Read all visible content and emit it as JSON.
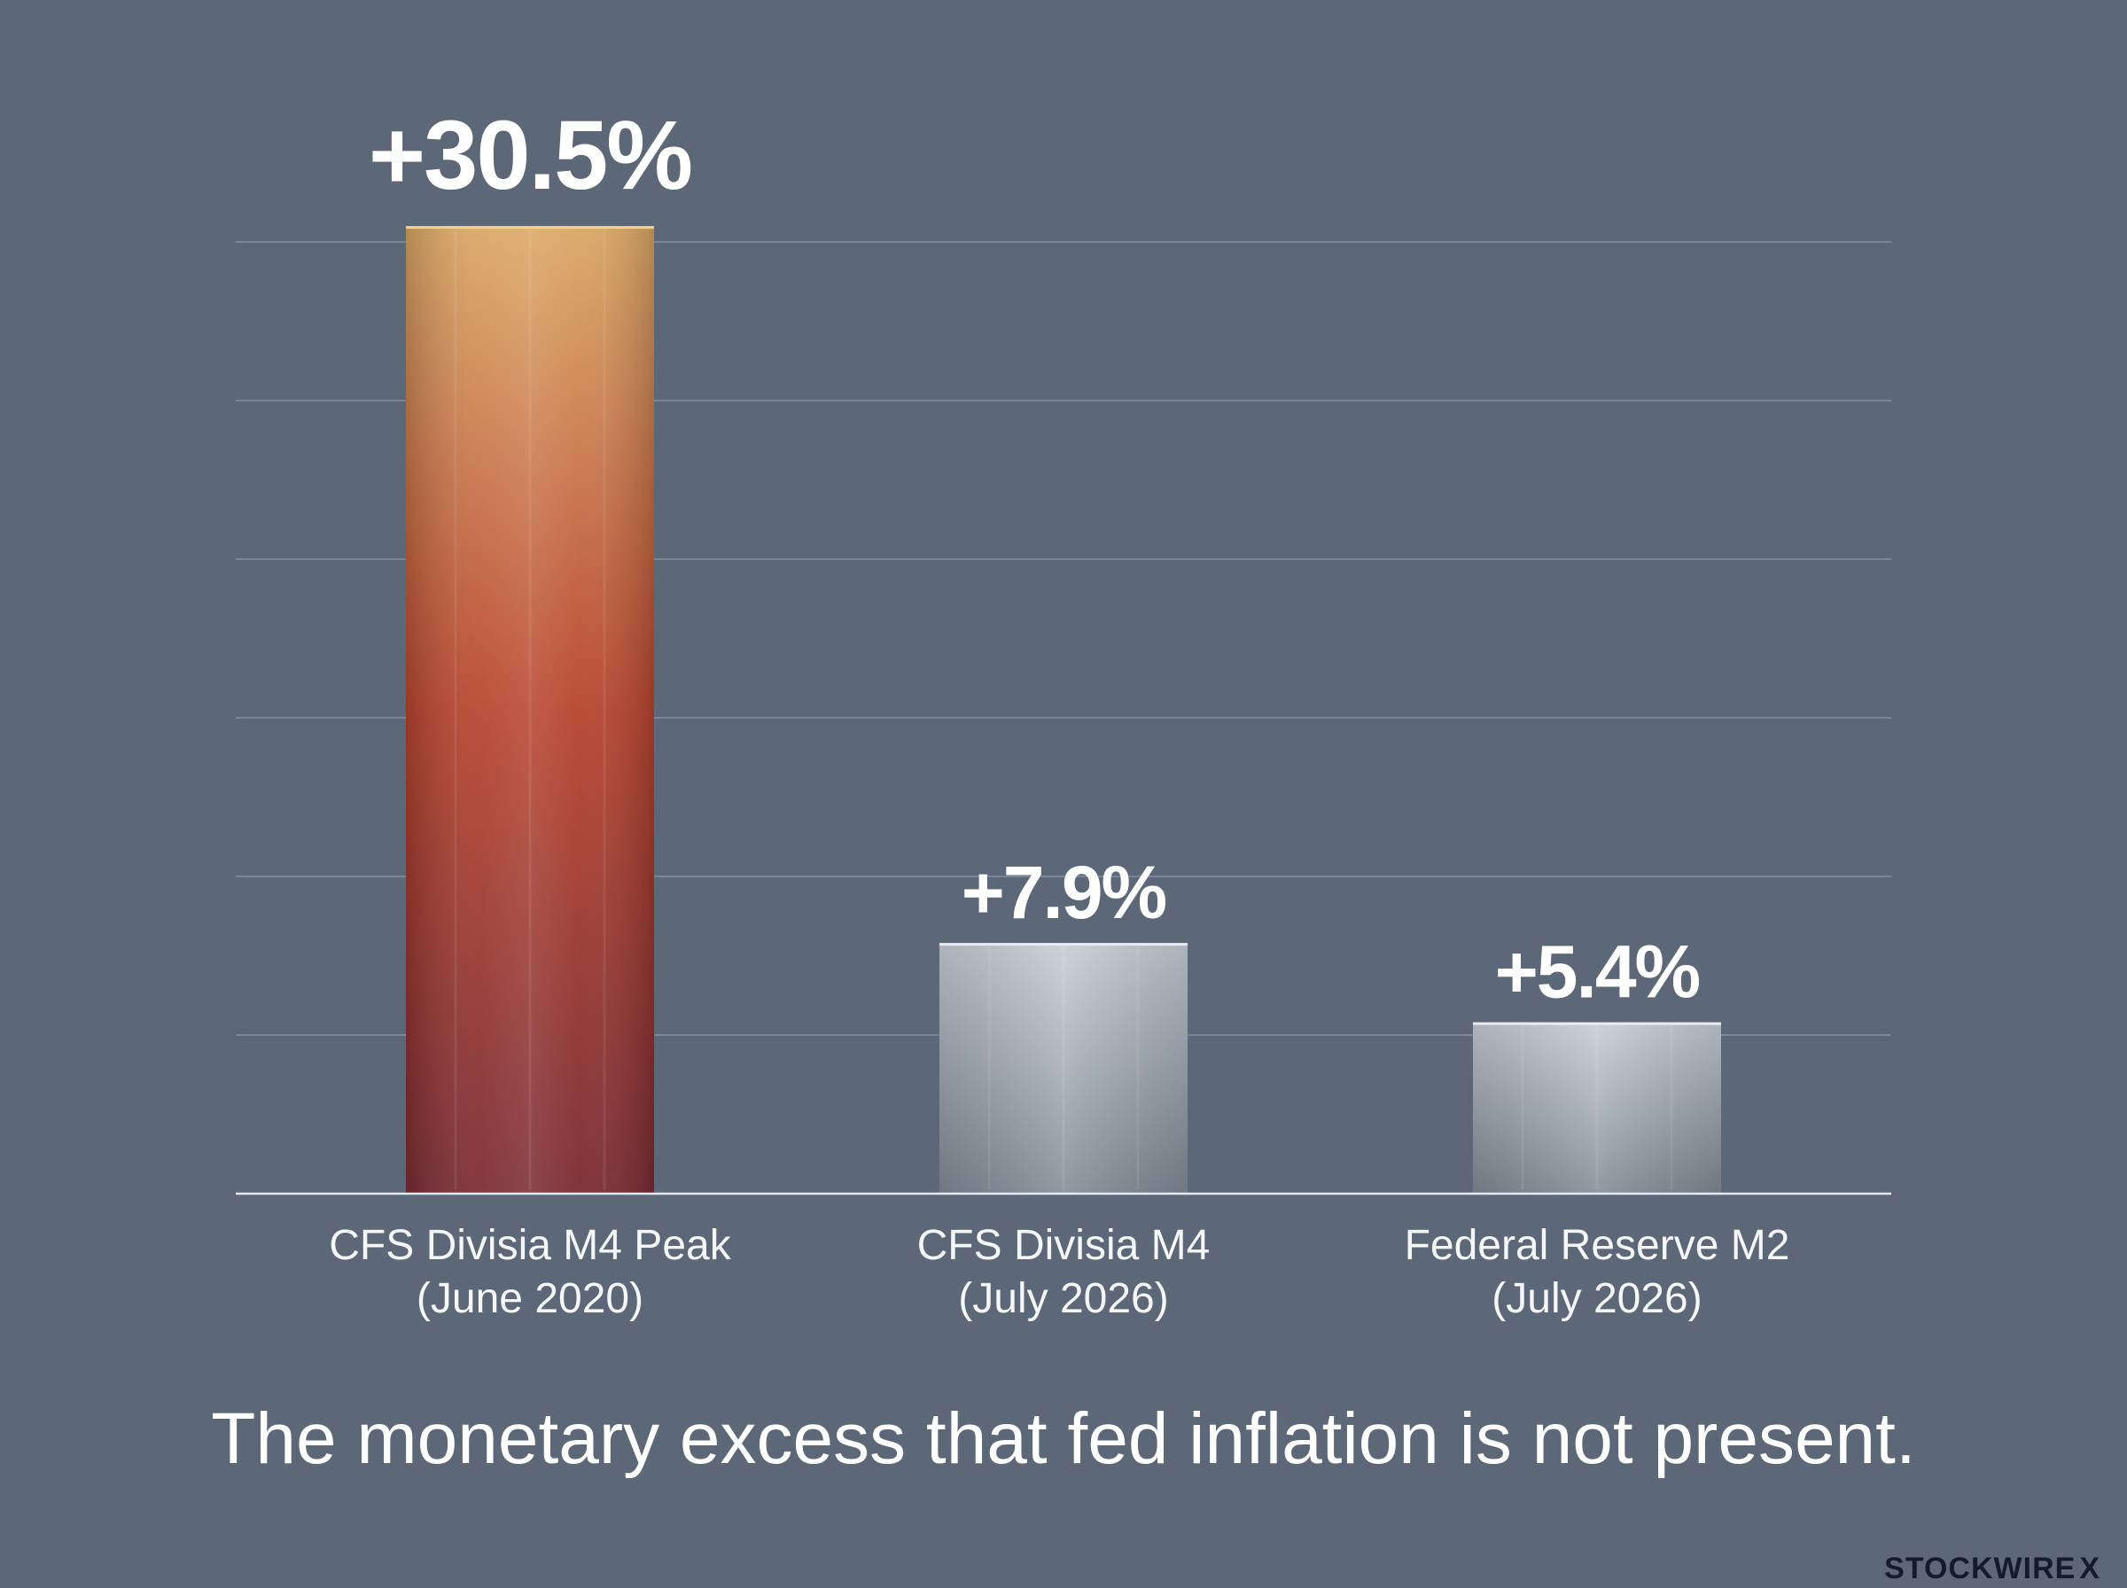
{
  "chart_data": {
    "type": "bar",
    "categories": [
      [
        "CFS Divisia M4 Peak",
        "(June 2020)"
      ],
      [
        "CFS Divisia M4",
        "(July 2026)"
      ],
      [
        "Federal Reserve M2",
        "(July 2026)"
      ]
    ],
    "values": [
      30.5,
      7.9,
      5.4
    ],
    "value_labels": [
      "+30.5%",
      "+7.9%",
      "+5.4%"
    ],
    "bar_styles": [
      "highlight",
      "neutral",
      "neutral"
    ],
    "ylim": [
      0,
      30
    ],
    "gridlines": [
      5,
      10,
      15,
      20,
      25,
      30
    ],
    "grid": true,
    "title": "",
    "xlabel": "",
    "ylabel": ""
  },
  "caption": "The monetary excess that fed inflation is not present.",
  "brand": {
    "name": "STOCKWIRE",
    "mark": "X"
  },
  "colors": {
    "background": "#5c6878",
    "gridline": "#7a8698",
    "axis": "#e6eaef",
    "highlight_top": "#dba866",
    "highlight_mid": "#b8452f",
    "highlight_bottom": "#7a2c34",
    "neutral_top": "#c5ccd5",
    "neutral_bottom": "#7e8894",
    "brand": "#141c2c"
  }
}
